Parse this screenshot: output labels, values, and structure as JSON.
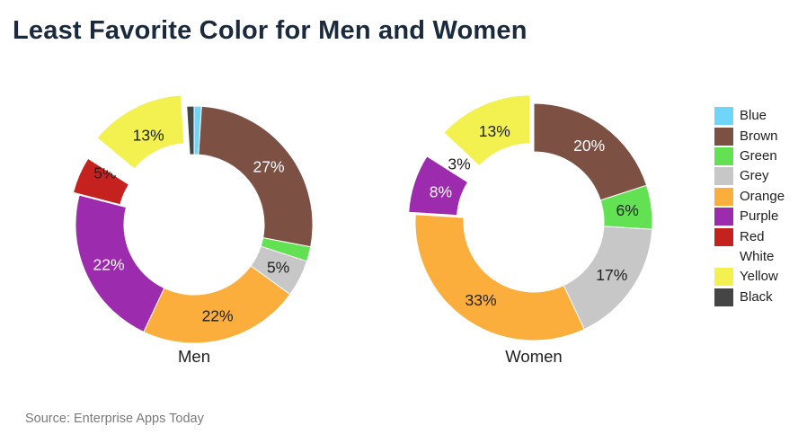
{
  "page": {
    "title": "Least Favorite Color for Men and Women",
    "source": "Source: Enterprise Apps Today"
  },
  "legend": {
    "position": "right",
    "items": [
      {
        "label": "Blue",
        "color": "#6FD5FB"
      },
      {
        "label": "Brown",
        "color": "#7D5044"
      },
      {
        "label": "Green",
        "color": "#62E152"
      },
      {
        "label": "Grey",
        "color": "#C7C7C7"
      },
      {
        "label": "Orange",
        "color": "#FBAE3C"
      },
      {
        "label": "Purple",
        "color": "#9C2BAE"
      },
      {
        "label": "Red",
        "color": "#C5221F"
      },
      {
        "label": "White",
        "color": "#FFFFFF"
      },
      {
        "label": "Yellow",
        "color": "#F2F150"
      },
      {
        "label": "Black",
        "color": "#454545"
      }
    ]
  },
  "chart_data": [
    {
      "type": "pie",
      "title": "Men",
      "unit": "%",
      "donut_hole_ratio": 0.59,
      "start_angle_deg": 0,
      "direction": "clockwise",
      "categories": [
        "Blue",
        "Brown",
        "Green",
        "Grey",
        "Orange",
        "Purple",
        "Red",
        "White",
        "Yellow",
        "Black"
      ],
      "values": [
        1,
        27,
        2,
        5,
        22,
        22,
        5,
        2,
        13,
        1
      ],
      "data_labels": [
        "",
        "27%",
        "",
        "5%",
        "22%",
        "22%",
        "5%",
        "",
        "13%",
        ""
      ],
      "label_text_colors": [
        "",
        "#ffffff",
        "",
        "#212121",
        "#212121",
        "#ffffff",
        "#212121",
        "",
        "#212121",
        ""
      ],
      "exploded_slices": {
        "Red": 0.055,
        "Yellow": 0.105
      }
    },
    {
      "type": "pie",
      "title": "Women",
      "unit": "%",
      "donut_hole_ratio": 0.59,
      "start_angle_deg": 0,
      "direction": "clockwise",
      "categories": [
        "Blue",
        "Brown",
        "Green",
        "Grey",
        "Orange",
        "Purple",
        "Red",
        "White",
        "Yellow",
        "Black"
      ],
      "values": [
        0,
        20,
        6,
        17,
        33,
        8,
        0,
        3,
        13,
        0
      ],
      "data_labels": [
        "",
        "20%",
        "6%",
        "17%",
        "33%",
        "8%",
        "",
        "3%",
        "13%",
        ""
      ],
      "label_text_colors": [
        "",
        "#ffffff",
        "#212121",
        "#212121",
        "#212121",
        "#ffffff",
        "",
        "#212121",
        "#212121",
        ""
      ],
      "exploded_slices": {
        "Purple": 0.06,
        "Yellow": 0.075
      }
    }
  ]
}
